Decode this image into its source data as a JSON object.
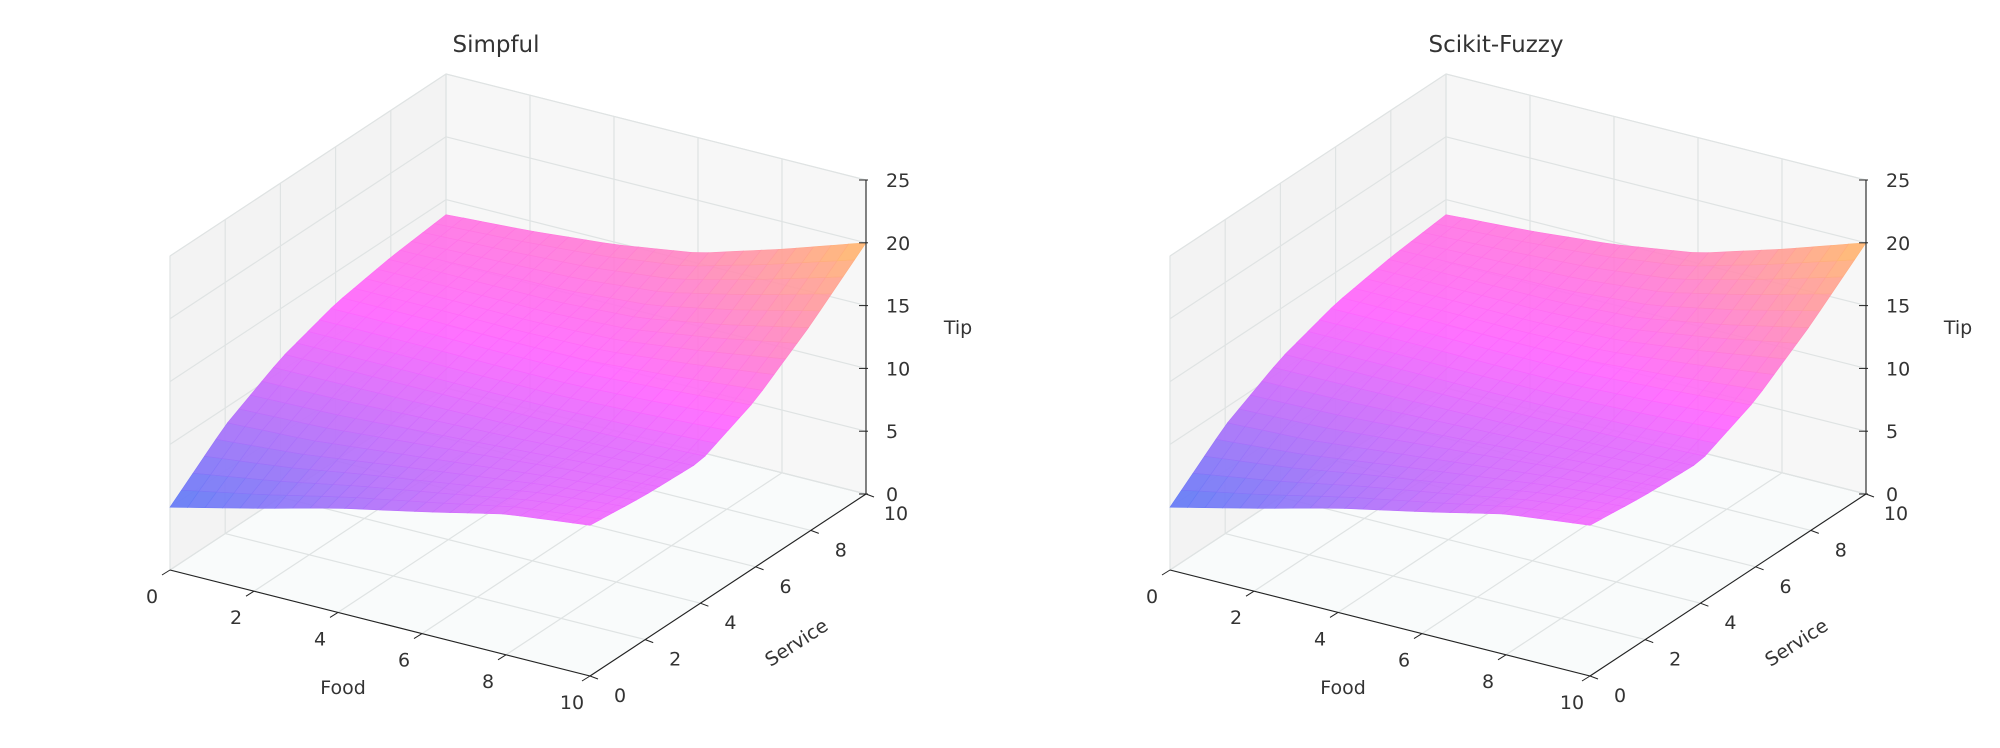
{
  "chart_data": [
    {
      "type": "surface",
      "title": "Simpful",
      "xlabel": "Food",
      "ylabel": "Service",
      "zlabel": "Tip",
      "x_ticks": [
        "0",
        "2",
        "4",
        "6",
        "8",
        "10"
      ],
      "y_ticks": [
        "0",
        "2",
        "4",
        "6",
        "8",
        "10"
      ],
      "z_ticks": [
        "0",
        "5",
        "10",
        "15",
        "20",
        "25"
      ],
      "xlim": [
        0,
        10
      ],
      "ylim": [
        0,
        10
      ],
      "zlim": [
        0,
        25
      ],
      "grid": true,
      "colormap": [
        "#5a7cf5",
        "#ff66ff",
        "#ffbb66"
      ],
      "x": [
        0,
        2,
        4,
        6,
        8,
        10
      ],
      "y": [
        0,
        2,
        4,
        6,
        8,
        10
      ],
      "z": [
        [
          5.0,
          8.6,
          11.0,
          12.5,
          13.3,
          13.8
        ],
        [
          6.6,
          8.9,
          11.0,
          12.5,
          13.3,
          14.2
        ],
        [
          8.3,
          9.6,
          11.0,
          12.4,
          13.3,
          14.8
        ],
        [
          9.7,
          10.3,
          11.0,
          12.4,
          13.7,
          15.8
        ],
        [
          11.2,
          11.0,
          11.1,
          12.8,
          14.9,
          17.8
        ],
        [
          12.0,
          11.5,
          11.3,
          13.3,
          16.4,
          20.0
        ]
      ]
    },
    {
      "type": "surface",
      "title": "Scikit-Fuzzy",
      "xlabel": "Food",
      "ylabel": "Service",
      "zlabel": "Tip",
      "x_ticks": [
        "0",
        "2",
        "4",
        "6",
        "8",
        "10"
      ],
      "y_ticks": [
        "0",
        "2",
        "4",
        "6",
        "8",
        "10"
      ],
      "z_ticks": [
        "0",
        "5",
        "10",
        "15",
        "20",
        "25"
      ],
      "xlim": [
        0,
        10
      ],
      "ylim": [
        0,
        10
      ],
      "zlim": [
        0,
        25
      ],
      "grid": true,
      "colormap": [
        "#5a7cf5",
        "#ff66ff",
        "#ffbb66"
      ],
      "x": [
        0,
        2,
        4,
        6,
        8,
        10
      ],
      "y": [
        0,
        2,
        4,
        6,
        8,
        10
      ],
      "z": [
        [
          5.0,
          8.6,
          11.0,
          12.5,
          13.3,
          13.8
        ],
        [
          6.6,
          8.9,
          11.0,
          12.5,
          13.3,
          14.2
        ],
        [
          8.3,
          9.6,
          11.0,
          12.4,
          13.3,
          14.8
        ],
        [
          9.7,
          10.3,
          11.0,
          12.4,
          13.7,
          15.8
        ],
        [
          11.2,
          11.0,
          11.1,
          12.8,
          14.9,
          17.8
        ],
        [
          12.0,
          11.5,
          11.3,
          13.3,
          16.4,
          20.0
        ]
      ]
    }
  ]
}
